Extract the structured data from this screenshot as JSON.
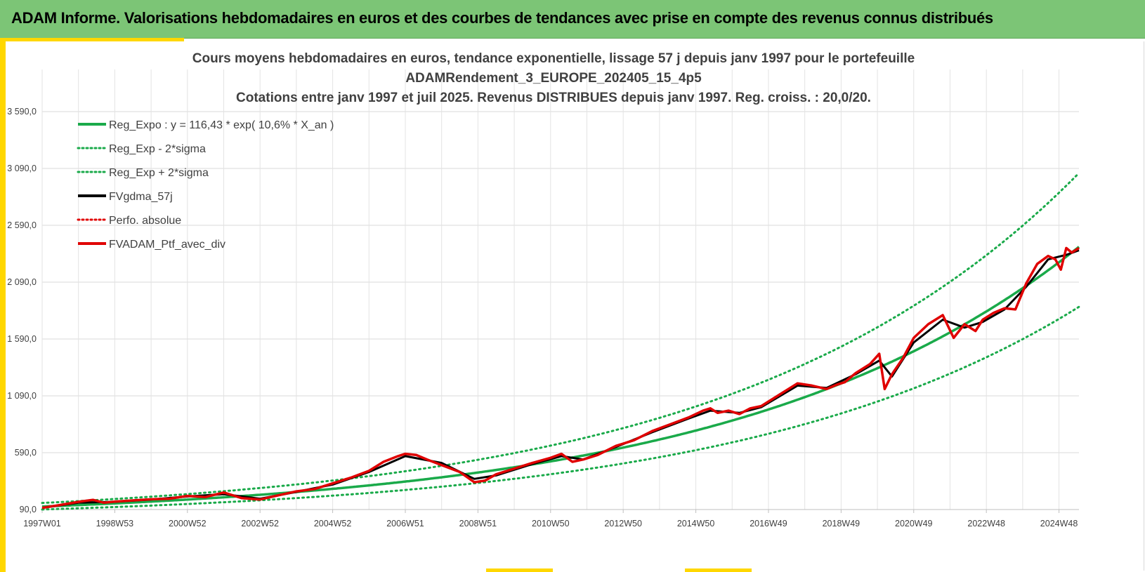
{
  "banner": {
    "title": "ADAM Informe. Valorisations hebdomadaires en euros et des courbes de tendances avec prise en compte des revenus connus distribués"
  },
  "colors": {
    "banner_bg": "#7cc576",
    "accent": "#ffd700",
    "trend": "#1aaa4a",
    "gdma": "#000000",
    "portfolio": "#e00000"
  },
  "chart_data": {
    "type": "line",
    "title_lines": [
      "Cours moyens hebdomadaires  en euros, tendance exponentielle, lissage 57 j depuis janv 1997 pour le portefeuille",
      "ADAMRendement_3_EUROPE_202405_15_4p5",
      "Cotations entre janv 1997 et juil 2025. Revenus DISTRIBUES depuis janv 1997. Reg. croiss. : 20,0/20."
    ],
    "y_ticks": [
      "90,0",
      "590,0",
      "1 090,0",
      "1 590,0",
      "2 090,0",
      "2 590,0",
      "3 090,0",
      "3 590,0"
    ],
    "ylim": [
      90,
      3590
    ],
    "x_ticks": [
      "1997W01",
      "1998W53",
      "2000W52",
      "2002W52",
      "2004W52",
      "2006W51",
      "2008W51",
      "2010W50",
      "2012W50",
      "2014W50",
      "2016W49",
      "2018W49",
      "2020W49",
      "2022W48",
      "2024W48"
    ],
    "x_tick_years": [
      1997.0,
      1999.0,
      2001.0,
      2003.0,
      2005.0,
      2007.0,
      2009.0,
      2011.0,
      2013.0,
      2015.0,
      2017.0,
      2019.0,
      2021.0,
      2023.0,
      2025.0
    ],
    "xlim": [
      1997.0,
      2025.55
    ],
    "grid": true,
    "legend_position": "top-left",
    "legend": [
      {
        "key": "trend",
        "label": "Reg_Expo : y = 116,43 * exp( 10,6% *  X_an )",
        "style": "solid",
        "color": "#1aaa4a"
      },
      {
        "key": "lower",
        "label": "Reg_Exp - 2*sigma",
        "style": "dotted",
        "color": "#1aaa4a"
      },
      {
        "key": "upper",
        "label": "Reg_Exp + 2*sigma",
        "style": "dotted",
        "color": "#1aaa4a"
      },
      {
        "key": "gdma",
        "label": "FVgdma_57j",
        "style": "solid",
        "color": "#000000"
      },
      {
        "key": "perf",
        "label": "Perfo. absolue",
        "style": "dotted",
        "color": "#e00000"
      },
      {
        "key": "ptf",
        "label": "FVADAM_Ptf_avec_div",
        "style": "solid",
        "color": "#e00000"
      }
    ],
    "trend": {
      "a": 116.43,
      "rate": 0.106,
      "sigma_band_factor": 0.78
    },
    "series": [
      {
        "name": "FVADAM_Ptf_avec_div",
        "x": [
          1997.0,
          1997.5,
          1998.0,
          1998.4,
          1998.7,
          1999.0,
          1999.5,
          2000.0,
          2000.5,
          2001.0,
          2001.5,
          2002.0,
          2002.5,
          2003.0,
          2003.5,
          2004.0,
          2004.5,
          2005.0,
          2005.5,
          2006.0,
          2006.4,
          2006.8,
          2007.0,
          2007.3,
          2007.6,
          2008.0,
          2008.5,
          2008.9,
          2009.2,
          2009.5,
          2010.0,
          2010.5,
          2011.0,
          2011.3,
          2011.6,
          2011.9,
          2012.3,
          2012.8,
          2013.3,
          2013.8,
          2014.3,
          2014.8,
          2015.2,
          2015.4,
          2015.6,
          2015.9,
          2016.2,
          2016.5,
          2016.8,
          2017.3,
          2017.8,
          2018.2,
          2018.6,
          2018.9,
          2019.1,
          2019.4,
          2019.8,
          2020.05,
          2020.2,
          2020.4,
          2020.7,
          2021.0,
          2021.4,
          2021.8,
          2022.1,
          2022.4,
          2022.7,
          2022.9,
          2023.2,
          2023.5,
          2023.8,
          2024.1,
          2024.4,
          2024.7,
          2024.9,
          2025.05,
          2025.2,
          2025.35,
          2025.55
        ],
        "y": [
          105,
          130,
          158,
          175,
          150,
          160,
          170,
          180,
          185,
          210,
          200,
          240,
          190,
          178,
          215,
          250,
          270,
          320,
          370,
          430,
          510,
          560,
          580,
          570,
          530,
          480,
          420,
          330,
          345,
          400,
          450,
          500,
          545,
          580,
          510,
          530,
          570,
          650,
          700,
          780,
          840,
          900,
          960,
          980,
          940,
          960,
          930,
          980,
          1000,
          1100,
          1200,
          1180,
          1150,
          1190,
          1210,
          1290,
          1370,
          1460,
          1150,
          1280,
          1420,
          1600,
          1720,
          1800,
          1600,
          1720,
          1660,
          1760,
          1820,
          1860,
          1850,
          2080,
          2250,
          2320,
          2290,
          2200,
          2390,
          2350,
          2390
        ]
      },
      {
        "name": "FVgdma_57j",
        "x": [
          1997.0,
          1998.0,
          1999.0,
          2000.0,
          2001.0,
          2002.0,
          2003.0,
          2004.0,
          2005.0,
          2006.0,
          2007.0,
          2008.0,
          2008.9,
          2009.5,
          2010.5,
          2011.3,
          2011.9,
          2012.8,
          2013.8,
          2014.8,
          2015.4,
          2016.2,
          2016.8,
          2017.8,
          2018.6,
          2019.4,
          2020.05,
          2020.4,
          2021.0,
          2021.8,
          2022.4,
          2022.9,
          2023.5,
          2024.1,
          2024.7,
          2025.2,
          2025.55
        ],
        "y": [
          105,
          150,
          158,
          178,
          205,
          225,
          185,
          245,
          310,
          420,
          560,
          500,
          360,
          390,
          490,
          560,
          530,
          640,
          770,
          890,
          960,
          940,
          990,
          1180,
          1160,
          1280,
          1400,
          1260,
          1560,
          1760,
          1690,
          1740,
          1850,
          2050,
          2290,
          2330,
          2370
        ]
      }
    ]
  }
}
